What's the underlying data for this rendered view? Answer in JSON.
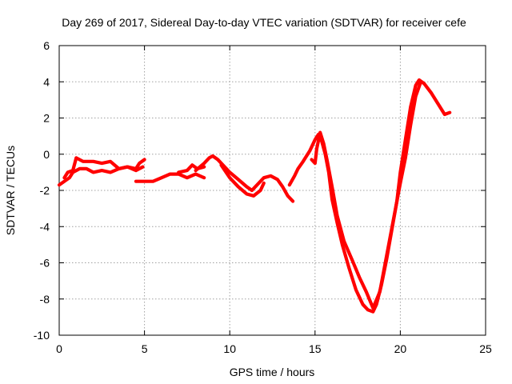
{
  "chart_data": {
    "type": "scatter",
    "title": "Day 269 of 2017, Sidereal Day-to-day VTEC variation (SDTVAR) for receiver cefe",
    "xlabel": "GPS time / hours",
    "ylabel": "SDTVAR / TECUs",
    "xlim": [
      0,
      25
    ],
    "ylim": [
      -10,
      6
    ],
    "xticks": [
      0,
      5,
      10,
      15,
      20,
      25
    ],
    "yticks": [
      -10,
      -8,
      -6,
      -4,
      -2,
      0,
      2,
      4,
      6
    ],
    "grid": true,
    "marker": "+",
    "color": "#ff0000",
    "series": [
      {
        "name": "trace-a",
        "x": [
          0.0,
          0.3,
          0.6,
          0.8,
          1.2,
          1.6,
          2.0,
          2.5,
          3.0,
          3.5,
          4.0,
          4.5,
          4.9
        ],
        "y": [
          -1.7,
          -1.5,
          -1.3,
          -1.0,
          -0.8,
          -0.8,
          -1.0,
          -0.9,
          -1.0,
          -0.8,
          -0.7,
          -0.9,
          -0.7
        ]
      },
      {
        "name": "trace-b",
        "x": [
          0.3,
          0.5,
          0.8,
          1.0,
          1.4,
          2.0,
          2.5,
          3.0,
          3.5,
          4.0,
          4.5,
          4.7,
          5.0
        ],
        "y": [
          -1.3,
          -1.0,
          -0.9,
          -0.2,
          -0.4,
          -0.4,
          -0.5,
          -0.4,
          -0.8,
          -0.7,
          -0.8,
          -0.5,
          -0.3
        ]
      },
      {
        "name": "trace-c",
        "x": [
          4.5,
          5.0,
          5.5,
          6.0,
          6.5,
          7.0,
          7.5,
          8.0,
          8.5
        ],
        "y": [
          -1.5,
          -1.5,
          -1.5,
          -1.3,
          -1.1,
          -1.1,
          -1.3,
          -1.1,
          -1.3
        ]
      },
      {
        "name": "trace-d",
        "x": [
          7.0,
          7.5,
          7.8,
          8.1,
          8.5
        ],
        "y": [
          -1.0,
          -0.9,
          -0.6,
          -0.8,
          -0.7
        ]
      },
      {
        "name": "trace-e",
        "x": [
          8.0,
          8.5,
          8.8,
          9.0,
          9.3,
          9.6,
          10.0,
          10.5,
          11.0,
          11.3,
          11.6,
          12.0,
          12.4,
          12.8,
          13.1,
          13.4,
          13.7
        ],
        "y": [
          -0.9,
          -0.5,
          -0.2,
          -0.1,
          -0.3,
          -0.6,
          -1.0,
          -1.4,
          -1.8,
          -2.0,
          -1.7,
          -1.3,
          -1.2,
          -1.4,
          -1.8,
          -2.3,
          -2.6
        ]
      },
      {
        "name": "trace-f",
        "x": [
          9.5,
          10.0,
          10.5,
          11.0,
          11.4,
          11.8,
          12.0
        ],
        "y": [
          -0.6,
          -1.3,
          -1.8,
          -2.2,
          -2.3,
          -2.0,
          -1.6
        ]
      },
      {
        "name": "trace-g",
        "x": [
          13.5,
          13.8,
          14.0,
          14.3,
          14.7,
          15.0,
          15.2,
          15.4,
          15.6,
          15.8,
          16.0,
          16.3,
          16.6,
          17.0,
          17.4,
          17.8,
          18.1,
          18.4,
          18.6,
          18.9,
          19.2,
          19.5,
          19.8,
          20.0,
          20.3,
          20.6,
          20.9,
          21.1,
          21.4,
          21.8,
          22.2,
          22.6,
          22.9
        ],
        "y": [
          -1.7,
          -1.2,
          -0.8,
          -0.4,
          0.2,
          0.8,
          1.1,
          0.7,
          0.0,
          -1.0,
          -2.5,
          -3.8,
          -5.0,
          -6.3,
          -7.5,
          -8.3,
          -8.6,
          -8.7,
          -8.3,
          -7.2,
          -5.8,
          -4.2,
          -2.6,
          -1.0,
          0.8,
          2.6,
          3.8,
          4.1,
          3.9,
          3.4,
          2.8,
          2.2,
          2.3
        ]
      },
      {
        "name": "trace-h",
        "x": [
          14.8,
          15.0,
          15.1,
          15.3,
          15.5,
          15.7,
          16.0,
          16.3,
          16.7,
          17.2,
          17.6,
          18.0,
          18.4,
          18.8,
          19.1,
          19.4,
          19.7,
          20.0,
          20.3,
          20.6,
          20.9,
          21.2
        ],
        "y": [
          -0.3,
          -0.5,
          0.3,
          1.2,
          0.6,
          -0.3,
          -1.8,
          -3.4,
          -4.8,
          -5.9,
          -6.8,
          -7.6,
          -8.5,
          -7.6,
          -6.1,
          -4.6,
          -3.1,
          -1.6,
          -0.2,
          1.6,
          3.2,
          4.0
        ]
      }
    ]
  }
}
